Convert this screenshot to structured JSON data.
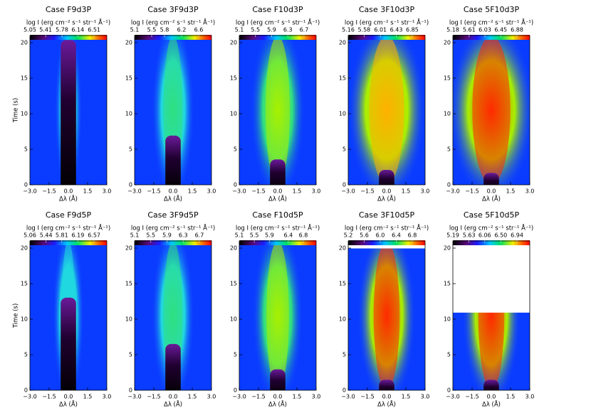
{
  "chart_data": [
    {
      "type": "heatmap",
      "title": "Case F9d3P",
      "colorbar_label": "log I (erg cm⁻² s⁻¹ str⁻¹ Å⁻¹)",
      "clim": [
        5.05,
        6.8
      ],
      "cticks": [
        5.05,
        5.41,
        5.78,
        6.14,
        6.51
      ],
      "xlabel": "Δλ (Å)",
      "ylabel": "Time (s)",
      "xlim": [
        -3,
        3
      ],
      "xticks": [
        {
          "value": -3,
          "label": "−3.0"
        },
        {
          "value": -1.5,
          "label": "−1.5"
        },
        {
          "value": 0,
          "label": "0.0"
        },
        {
          "value": 1.5,
          "label": "1.5"
        },
        {
          "value": 3,
          "label": "3.0"
        }
      ],
      "ylim": [
        0,
        21
      ],
      "yticks": [
        0,
        5,
        10,
        15,
        20
      ]
    },
    {
      "type": "heatmap",
      "title": "Case 3F9d3P",
      "colorbar_label": "log I (erg cm⁻² s⁻¹ str⁻¹ Å⁻¹)",
      "clim": [
        5.1,
        6.9
      ],
      "cticks": [
        5.1,
        5.5,
        5.8,
        6.2,
        6.6
      ],
      "xlabel": "Δλ (Å)",
      "xlim": [
        -3,
        3
      ],
      "xticks": [
        {
          "value": -3,
          "label": "−3.0"
        },
        {
          "value": -1.5,
          "label": "−1.5"
        },
        {
          "value": 0,
          "label": "0.0"
        },
        {
          "value": 1.5,
          "label": "1.5"
        },
        {
          "value": 3,
          "label": "3.0"
        }
      ],
      "ylim": [
        0,
        21
      ],
      "yticks": [
        0,
        5,
        10,
        15,
        20
      ]
    },
    {
      "type": "heatmap",
      "title": "Case F10d3P",
      "colorbar_label": "log I (erg cm⁻² s⁻¹ str⁻¹ Å⁻¹)",
      "clim": [
        5.1,
        7.0
      ],
      "cticks": [
        5.1,
        5.5,
        5.9,
        6.3,
        6.7
      ],
      "xlabel": "Δλ (Å)",
      "xlim": [
        -3,
        3
      ],
      "xticks": [
        {
          "value": -3,
          "label": "−3.0"
        },
        {
          "value": -1.5,
          "label": "−1.5"
        },
        {
          "value": 0,
          "label": "0.0"
        },
        {
          "value": 1.5,
          "label": "1.5"
        },
        {
          "value": 3,
          "label": "3.0"
        }
      ],
      "ylim": [
        0,
        21
      ],
      "yticks": [
        0,
        5,
        10,
        15,
        20
      ]
    },
    {
      "type": "heatmap",
      "title": "Case 3F10d3P",
      "colorbar_label": "log I (erg cm⁻² s⁻¹ str⁻¹ Å⁻¹)",
      "clim": [
        5.16,
        7.19
      ],
      "cticks": [
        5.16,
        5.58,
        6.01,
        6.43,
        6.85
      ],
      "xlabel": "Δλ (Å)",
      "xlim": [
        -3,
        3
      ],
      "xticks": [
        {
          "value": -3,
          "label": "−3.0"
        },
        {
          "value": -1.5,
          "label": "−1.5"
        },
        {
          "value": 0,
          "label": "0.0"
        },
        {
          "value": 1.5,
          "label": "1.5"
        },
        {
          "value": 3,
          "label": "3.0"
        }
      ],
      "ylim": [
        0,
        21
      ],
      "yticks": [
        0,
        5,
        10,
        15,
        20
      ]
    },
    {
      "type": "heatmap",
      "title": "Case 5F10d3P",
      "colorbar_label": "log I (erg cm⁻² s⁻¹ str⁻¹ Å⁻¹)",
      "clim": [
        5.18,
        7.22
      ],
      "cticks": [
        5.18,
        5.61,
        6.03,
        6.45,
        6.88
      ],
      "xlabel": "Δλ (Å)",
      "xlim": [
        -3,
        3
      ],
      "xticks": [
        {
          "value": -3,
          "label": "−3.0"
        },
        {
          "value": -1.5,
          "label": "−1.5"
        },
        {
          "value": 0,
          "label": "0.0"
        },
        {
          "value": 1.5,
          "label": "1.5"
        },
        {
          "value": 3,
          "label": "3.0"
        }
      ],
      "ylim": [
        0,
        21
      ],
      "yticks": [
        0,
        5,
        10,
        15,
        20
      ]
    },
    {
      "type": "heatmap",
      "title": "Case F9d5P",
      "colorbar_label": "log I (erg cm⁻² s⁻¹ str⁻¹ Å⁻¹)",
      "clim": [
        5.06,
        6.87
      ],
      "cticks": [
        5.06,
        5.44,
        5.81,
        6.19,
        6.57
      ],
      "xlabel": "Δλ (Å)",
      "ylabel": "Time (s)",
      "xlim": [
        -3,
        3
      ],
      "xticks": [
        {
          "value": -3,
          "label": "−3.0"
        },
        {
          "value": -1.5,
          "label": "−1.5"
        },
        {
          "value": 0,
          "label": "0.0"
        },
        {
          "value": 1.5,
          "label": "1.5"
        },
        {
          "value": 3,
          "label": "3.0"
        }
      ],
      "ylim": [
        0,
        21
      ],
      "yticks": [
        0,
        5,
        10,
        15,
        20
      ]
    },
    {
      "type": "heatmap",
      "title": "Case 3F9d5P",
      "colorbar_label": "log I (erg cm⁻² s⁻¹ str⁻¹ Å⁻¹)",
      "clim": [
        5.1,
        7.0
      ],
      "cticks": [
        5.1,
        5.5,
        5.9,
        6.3,
        6.7
      ],
      "xlabel": "Δλ (Å)",
      "xlim": [
        -3,
        3
      ],
      "xticks": [
        {
          "value": -3,
          "label": "−3.0"
        },
        {
          "value": -1.5,
          "label": "−1.5"
        },
        {
          "value": 0,
          "label": "0.0"
        },
        {
          "value": 1.5,
          "label": "1.5"
        },
        {
          "value": 3,
          "label": "3.0"
        }
      ],
      "ylim": [
        0,
        21
      ],
      "yticks": [
        0,
        5,
        10,
        15,
        20
      ]
    },
    {
      "type": "heatmap",
      "title": "Case F10d5P",
      "colorbar_label": "log I (erg cm⁻² s⁻¹ str⁻¹ Å⁻¹)",
      "clim": [
        5.1,
        7.14
      ],
      "cticks": [
        5.1,
        5.5,
        5.9,
        6.4,
        6.8
      ],
      "xlabel": "Δλ (Å)",
      "xlim": [
        -3,
        3
      ],
      "xticks": [
        {
          "value": -3,
          "label": "−3.0"
        },
        {
          "value": -1.5,
          "label": "−1.5"
        },
        {
          "value": 0,
          "label": "0.0"
        },
        {
          "value": 1.5,
          "label": "1.5"
        },
        {
          "value": 3,
          "label": "3.0"
        }
      ],
      "ylim": [
        0,
        21
      ],
      "yticks": [
        0,
        5,
        10,
        15,
        20
      ]
    },
    {
      "type": "heatmap",
      "title": "Case 3F10d5P",
      "colorbar_label": "log I (erg cm⁻² s⁻¹ str⁻¹ Å⁻¹)",
      "clim": [
        5.2,
        7.12
      ],
      "cticks": [
        5.2,
        5.6,
        {
          "value": 6,
          "label": "6.0"
        },
        6.4,
        6.8
      ],
      "xlabel": "Δλ (Å)",
      "xlim": [
        -3,
        3
      ],
      "xticks": [
        {
          "value": -3,
          "label": "−3.0"
        },
        {
          "value": -1.5,
          "label": "−1.5"
        },
        {
          "value": 0,
          "label": "0.0"
        },
        {
          "value": 1.5,
          "label": "1.5"
        },
        {
          "value": 3,
          "label": "3.0"
        }
      ],
      "ylim": [
        0,
        21
      ],
      "yticks": [
        0,
        5,
        10,
        15,
        20
      ]
    },
    {
      "type": "heatmap",
      "title": "Case 5F10d5P",
      "colorbar_label": "log I (erg cm⁻² s⁻¹ str⁻¹ Å⁻¹)",
      "clim": [
        5.19,
        7.29
      ],
      "cticks": [
        5.19,
        5.63,
        6.06,
        {
          "value": 6.5,
          "label": "6.50"
        },
        6.94
      ],
      "xlabel": "Δλ (Å)",
      "xlim": [
        -3,
        3
      ],
      "xticks": [
        {
          "value": -3,
          "label": "−3.0"
        },
        {
          "value": -1.5,
          "label": "−1.5"
        },
        {
          "value": 0,
          "label": "0.0"
        },
        {
          "value": 1.5,
          "label": "1.5"
        },
        {
          "value": 3,
          "label": "3.0"
        }
      ],
      "ylim": [
        0,
        21
      ],
      "yticks": [
        0,
        5,
        10,
        15,
        20
      ]
    }
  ]
}
